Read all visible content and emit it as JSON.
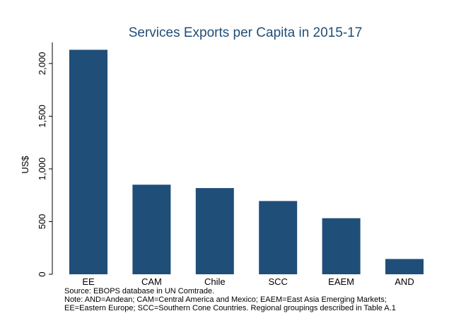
{
  "chart_data": {
    "type": "bar",
    "title": "Services Exports per Capita in 2015-17",
    "xlabel": "",
    "ylabel": "US$",
    "categories": [
      "EE",
      "CAM",
      "Chile",
      "SCC",
      "EAEM",
      "AND"
    ],
    "values": [
      2130,
      850,
      818,
      695,
      532,
      145
    ],
    "ylim": [
      0,
      2200
    ],
    "yticks": [
      0,
      500,
      1000,
      1500,
      2000
    ],
    "ytick_labels": [
      "0",
      "500",
      "1,000",
      "1,500",
      "2,000"
    ],
    "bar_color": "#1f4e79",
    "grid": false,
    "legend": "none"
  },
  "notes": {
    "source": "Source: EBOPS database in UN Comtrade.",
    "note_line1": "Note: AND=Andean; CAM=Central America and Mexico; EAEM=East Asia Emerging Markets;",
    "note_line2": "EE=Eastern Europe; SCC=Southern Cone Countries. Regional groupings described in Table A.1"
  }
}
